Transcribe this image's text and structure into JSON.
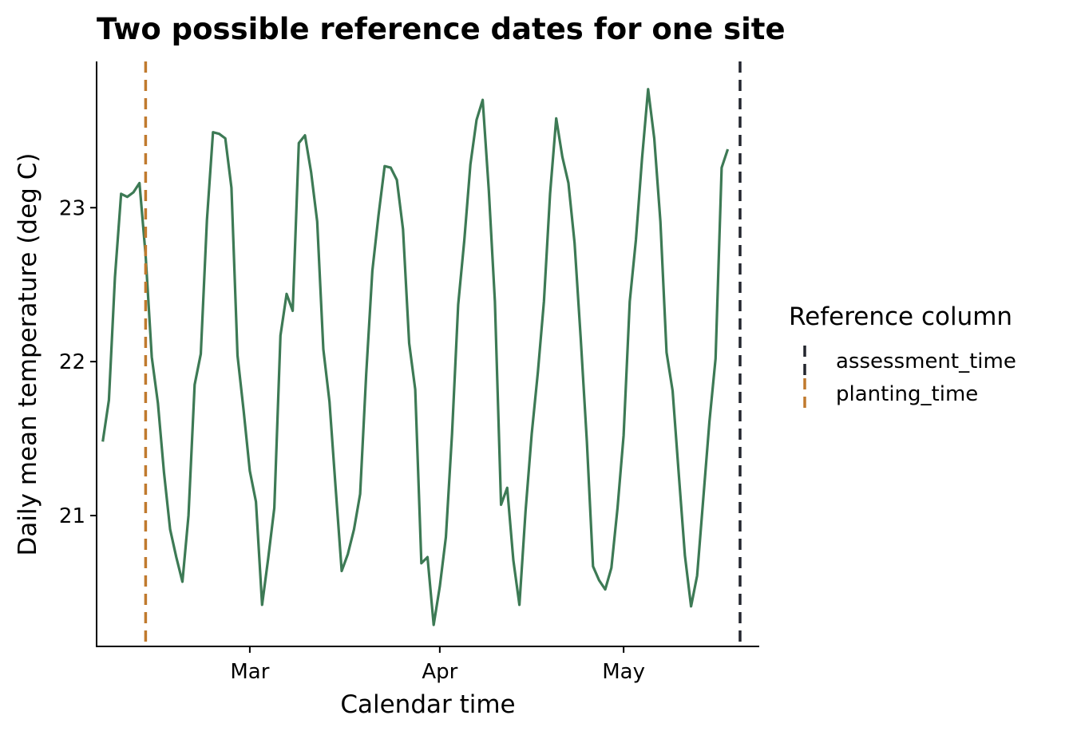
{
  "chart_data": {
    "type": "line",
    "title": "Two possible reference dates for one site",
    "xlabel": "Calendar time",
    "ylabel": "Daily mean temperature (deg C)",
    "x_start": "2024-02-06",
    "x_end": "2024-05-22",
    "xlim": [
      "2024-02-05",
      "2024-05-23"
    ],
    "ylim": [
      20.15,
      23.95
    ],
    "x_ticks": [
      {
        "date": "2024-03-01",
        "label": "Mar"
      },
      {
        "date": "2024-04-01",
        "label": "Apr"
      },
      {
        "date": "2024-05-01",
        "label": "May"
      }
    ],
    "y_ticks": [
      21,
      22,
      23
    ],
    "grid": false,
    "line_color": "#3d7a55",
    "series": [
      {
        "values": [
          21.48,
          21.75,
          22.55,
          23.09,
          23.07,
          23.1,
          23.16,
          22.69,
          22.03,
          21.73,
          21.28,
          20.91,
          20.73,
          20.57,
          21.0,
          21.85,
          22.05,
          22.92,
          23.49,
          23.48,
          23.45,
          23.13,
          22.04,
          21.68,
          21.29,
          21.09,
          20.42,
          20.72,
          21.05,
          22.17,
          22.44,
          22.33,
          23.42,
          23.47,
          23.23,
          22.91,
          22.08,
          21.74,
          21.18,
          20.64,
          20.75,
          20.91,
          21.14,
          21.92,
          22.59,
          22.95,
          23.27,
          23.26,
          23.18,
          22.86,
          22.12,
          21.82,
          20.69,
          20.73,
          20.29,
          20.54,
          20.86,
          21.53,
          22.37,
          22.79,
          23.28,
          23.57,
          23.7,
          23.11,
          22.39,
          21.07,
          21.18,
          20.71,
          20.42,
          21.03,
          21.53,
          21.93,
          22.39,
          23.09,
          23.58,
          23.33,
          23.16,
          22.77,
          22.15,
          21.48,
          20.67,
          20.58,
          20.52,
          20.66,
          21.05,
          21.52,
          22.39,
          22.79,
          23.32,
          23.77,
          23.45,
          22.91,
          22.06,
          21.81,
          21.27,
          20.74,
          20.41,
          20.61,
          21.11,
          21.61,
          22.02,
          23.26,
          23.38
        ]
      }
    ],
    "reference_lines": [
      {
        "name": "assessment_time",
        "date": "2024-05-20",
        "color": "#23262e"
      },
      {
        "name": "planting_time",
        "date": "2024-02-13",
        "color": "#c07a2e"
      }
    ],
    "legend": {
      "title": "Reference column",
      "position": "right",
      "entries": [
        "assessment_time",
        "planting_time"
      ]
    }
  }
}
